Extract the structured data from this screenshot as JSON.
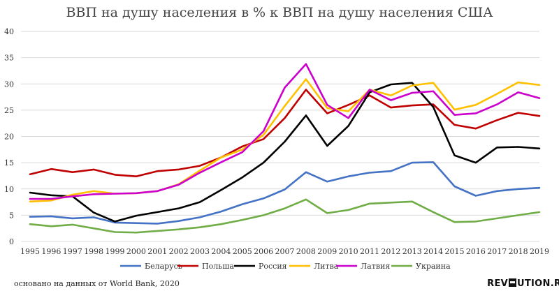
{
  "chart_data": {
    "type": "line",
    "title": "ВВП на душу населения в % к ВВП на душу населения США",
    "xlabel": "",
    "ylabel": "",
    "ylim": [
      0,
      40
    ],
    "yticks": [
      0,
      5,
      10,
      15,
      20,
      25,
      30,
      35,
      40
    ],
    "grid": true,
    "legend_position": "bottom",
    "x": [
      "1995",
      "1996",
      "1997",
      "1998",
      "1999",
      "2000",
      "2001",
      "2002",
      "2003",
      "2004",
      "2005",
      "2006",
      "2007",
      "2008",
      "2009",
      "2010",
      "2011",
      "2012",
      "2013",
      "2014",
      "2015",
      "2016",
      "2017",
      "2018",
      "2019"
    ],
    "series": [
      {
        "name": "Беларусь",
        "color": "#4472c4",
        "values": [
          4.7,
          4.8,
          4.4,
          4.6,
          3.6,
          3.5,
          3.4,
          3.9,
          4.6,
          5.7,
          7.1,
          8.2,
          9.9,
          13.2,
          11.4,
          12.4,
          13.1,
          13.4,
          15.0,
          15.1,
          10.5,
          8.7,
          9.6,
          10.0,
          10.2
        ]
      },
      {
        "name": "Польша",
        "color": "#c00000",
        "values": [
          12.8,
          13.8,
          13.2,
          13.7,
          12.7,
          12.4,
          13.4,
          13.7,
          14.4,
          16.0,
          18.1,
          19.5,
          23.5,
          28.9,
          24.4,
          26.0,
          27.8,
          25.5,
          25.9,
          26.1,
          22.2,
          21.5,
          23.1,
          24.5,
          23.9
        ]
      },
      {
        "name": "Россия",
        "color": "#000000",
        "values": [
          9.3,
          8.8,
          8.6,
          5.5,
          3.8,
          4.9,
          5.6,
          6.3,
          7.5,
          9.8,
          12.2,
          15.0,
          19.0,
          24.0,
          18.2,
          22.0,
          28.4,
          29.9,
          30.2,
          25.6,
          16.4,
          15.0,
          17.9,
          18.0,
          17.7
        ]
      },
      {
        "name": "Литва",
        "color": "#ffc000",
        "values": [
          7.6,
          7.8,
          8.9,
          9.6,
          9.1,
          9.2,
          9.6,
          10.9,
          13.5,
          16.0,
          17.5,
          20.3,
          25.8,
          30.9,
          25.4,
          24.8,
          28.9,
          27.8,
          29.7,
          30.2,
          25.1,
          26.0,
          28.1,
          30.3,
          29.8
        ]
      },
      {
        "name": "Латвия",
        "color": "#cc00cc",
        "values": [
          8.1,
          8.1,
          8.6,
          9.0,
          9.1,
          9.2,
          9.6,
          10.8,
          13.1,
          15.1,
          17.0,
          21.0,
          29.3,
          33.8,
          26.0,
          23.5,
          28.9,
          26.9,
          28.3,
          28.6,
          24.1,
          24.4,
          26.1,
          28.4,
          27.3
        ]
      },
      {
        "name": "Украина",
        "color": "#70ad47",
        "values": [
          3.3,
          2.9,
          3.2,
          2.5,
          1.8,
          1.7,
          2.0,
          2.3,
          2.7,
          3.3,
          4.1,
          5.0,
          6.3,
          8.0,
          5.4,
          6.0,
          7.2,
          7.4,
          7.6,
          5.6,
          3.7,
          3.8,
          4.4,
          5.0,
          5.6
        ]
      }
    ]
  },
  "footer": {
    "source_note": "основано на данных от World Bank, 2020",
    "brand_left": "REV",
    "brand_right": "UTION.RED"
  }
}
